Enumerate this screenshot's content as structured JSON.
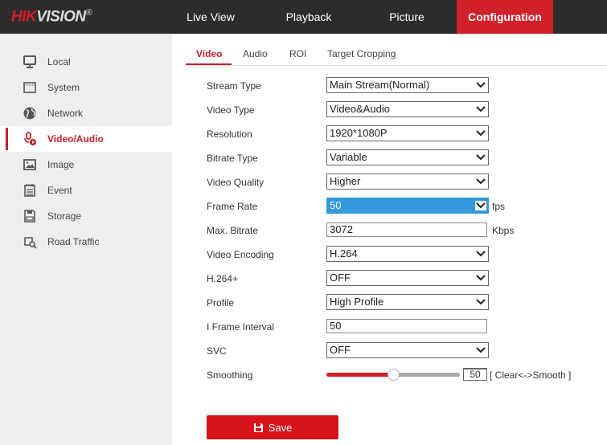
{
  "brand": {
    "red": "HIK",
    "white": "VISION",
    "mark": "®"
  },
  "colors": {
    "accent": "#d0202a",
    "header": "#2c2c2c",
    "highlight": "#3399dd"
  },
  "nav": [
    {
      "label": "Live View"
    },
    {
      "label": "Playback"
    },
    {
      "label": "Picture"
    },
    {
      "label": "Configuration",
      "active": true
    }
  ],
  "sidebar": [
    {
      "label": "Local",
      "icon": "monitor-icon"
    },
    {
      "label": "System",
      "icon": "window-icon"
    },
    {
      "label": "Network",
      "icon": "globe-icon"
    },
    {
      "label": "Video/Audio",
      "icon": "mic-play-icon",
      "active": true
    },
    {
      "label": "Image",
      "icon": "image-icon"
    },
    {
      "label": "Event",
      "icon": "calendar-icon"
    },
    {
      "label": "Storage",
      "icon": "floppy-icon"
    },
    {
      "label": "Road Traffic",
      "icon": "car-search-icon"
    }
  ],
  "tabs": [
    {
      "label": "Video",
      "active": true
    },
    {
      "label": "Audio"
    },
    {
      "label": "ROI"
    },
    {
      "label": "Target Cropping"
    }
  ],
  "fields": [
    {
      "label": "Stream Type",
      "type": "select",
      "value": "Main Stream(Normal)"
    },
    {
      "label": "Video Type",
      "type": "select",
      "value": "Video&Audio"
    },
    {
      "label": "Resolution",
      "type": "select",
      "value": "1920*1080P"
    },
    {
      "label": "Bitrate Type",
      "type": "select",
      "value": "Variable"
    },
    {
      "label": "Video Quality",
      "type": "select",
      "value": "Higher"
    },
    {
      "label": "Frame Rate",
      "type": "select",
      "value": "50",
      "unit": "fps",
      "highlighted": true
    },
    {
      "label": "Max. Bitrate",
      "type": "input",
      "value": "3072",
      "unit": "Kbps"
    },
    {
      "label": "Video Encoding",
      "type": "select",
      "value": "H.264"
    },
    {
      "label": "H.264+",
      "type": "select",
      "value": "OFF"
    },
    {
      "label": "Profile",
      "type": "select",
      "value": "High Profile"
    },
    {
      "label": "I Frame Interval",
      "type": "input",
      "value": "50"
    },
    {
      "label": "SVC",
      "type": "select",
      "value": "OFF"
    }
  ],
  "smoothing": {
    "label": "Smoothing",
    "value": "50",
    "percent": 50,
    "hint": "[ Clear<->Smooth ]"
  },
  "save_label": "Save"
}
